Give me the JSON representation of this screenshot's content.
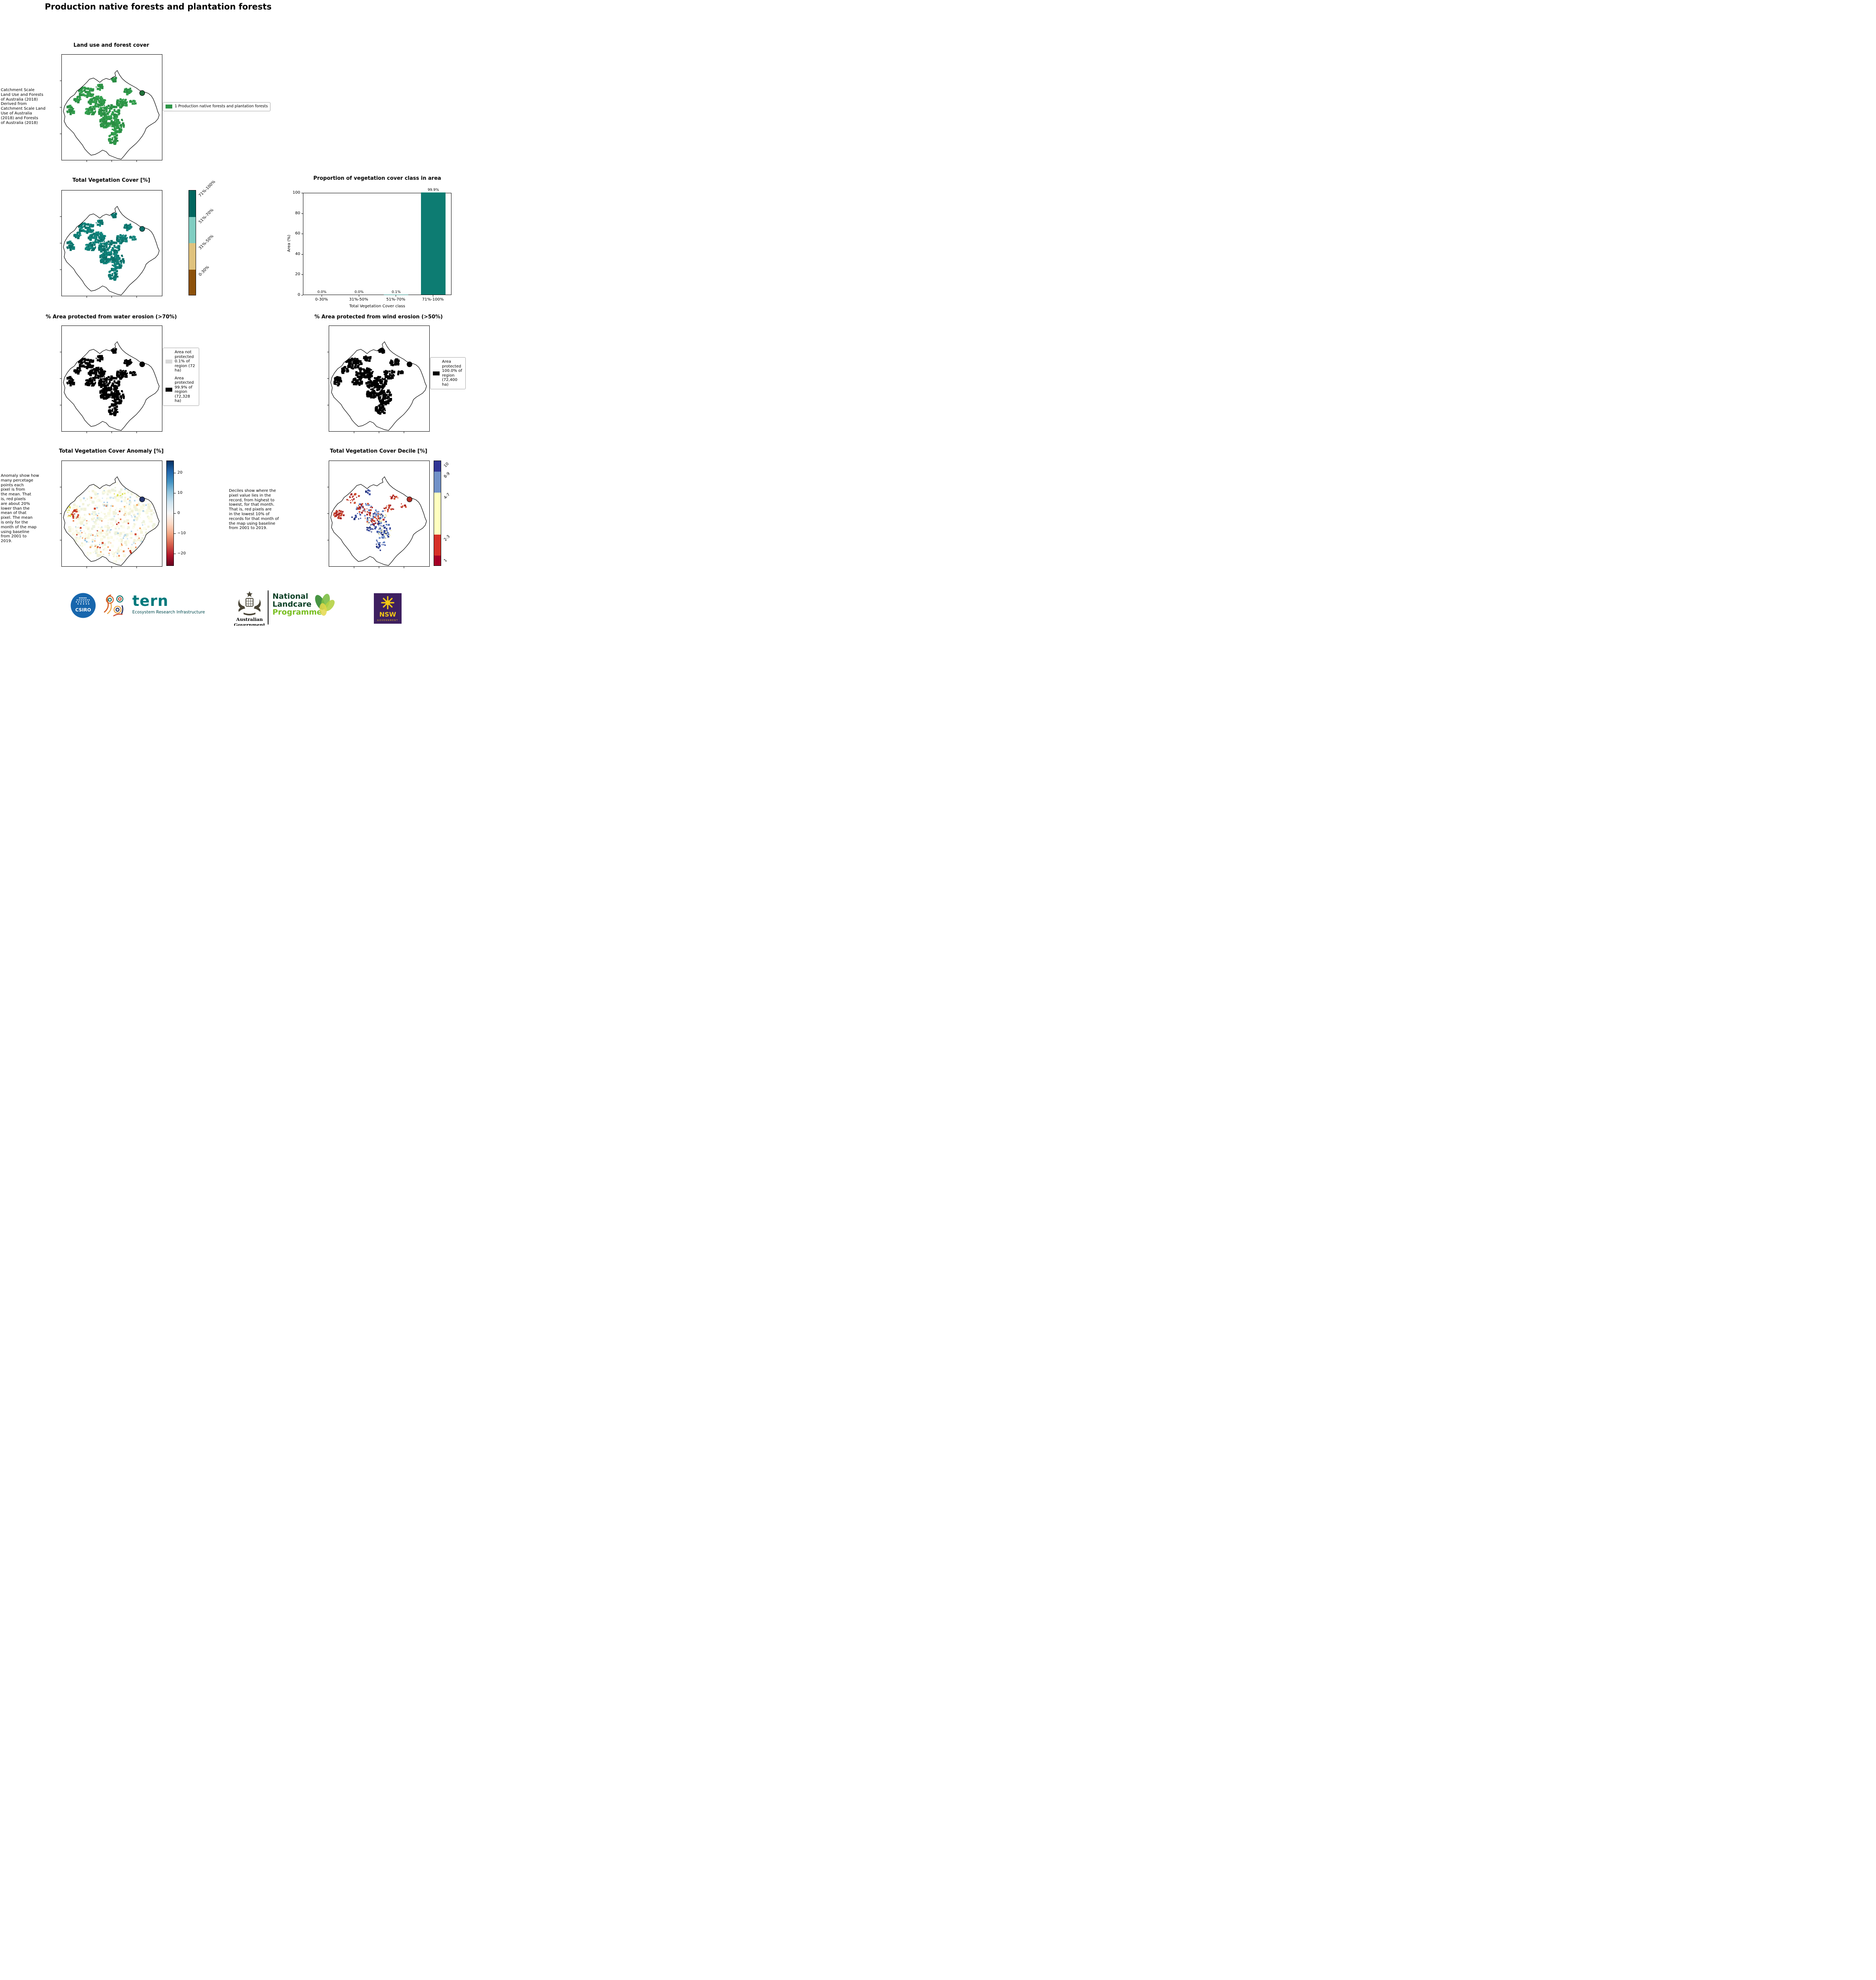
{
  "page": {
    "title": "Production native forests and plantation forests"
  },
  "colors": {
    "forest_green": "#2e9648",
    "veg_teal": "#0e7c74",
    "protected_black": "#000000",
    "not_protected_gray": "#d9d9d9"
  },
  "land_use": {
    "title": "Land use and forest cover",
    "side_text": " Catchment Scale\nLand Use and Forests\nof Australia (2018)\nDerived from\nCatchment Scale Land\nUse of Australia\n(2018) and Forests\nof Australia (2018)",
    "legend_label": "1 Production native forests and plantation forests",
    "legend_color": "#2e9648"
  },
  "veg_cover": {
    "title": "Total Vegetation Cover [%]",
    "colorbar": [
      {
        "label": "71%-100%",
        "color": "#01665e"
      },
      {
        "label": "51%-70%",
        "color": "#80cdc1"
      },
      {
        "label": "31%-50%",
        "color": "#dfc27d"
      },
      {
        "label": "0-30%",
        "color": "#8c510a"
      }
    ]
  },
  "chart_data": {
    "type": "bar",
    "title": "Proportion of vegetation cover class in area",
    "categories": [
      "0-30%",
      "31%-50%",
      "51%-70%",
      "71%-100%"
    ],
    "values": [
      0.0,
      0.0,
      0.1,
      99.9
    ],
    "value_labels": [
      "0.0%",
      "0.0%",
      "0.1%",
      "99.9%"
    ],
    "xlabel": "Total Vegetation Cover class",
    "ylabel": "Area (%)",
    "ylim": [
      0,
      100
    ],
    "yticks": [
      0,
      20,
      40,
      60,
      80,
      100
    ],
    "bar_color": "#0d7c72",
    "grid": false,
    "legend_position": "none"
  },
  "water_erosion": {
    "title": "% Area protected from water erosion (>70%)",
    "legend": [
      {
        "label": "Area not\nprotected\n0.1% of\nregion (72\nha)",
        "color": "#d9d9d9"
      },
      {
        "label": "Area\nprotected\n99.9% of\nregion\n(72,328\nha)",
        "color": "#000000"
      }
    ]
  },
  "wind_erosion": {
    "title": "% Area protected from wind erosion (>50%)",
    "legend": [
      {
        "label": "Area\nprotected\n100.0% of\nregion\n(72,400\nha)",
        "color": "#000000"
      }
    ]
  },
  "anomaly": {
    "title": "Total Vegetation Cover Anomaly [%]",
    "side_text": "Anomaly show how\nmany percetage\npoints each\npixel is from\nthe mean. That\nis, red pixels\nare about 20%\nlower than the\nmean of that\npixel. The mean\nis only for the\nmonth of the map\nusing baseline\nfrom 2001 to\n2019.",
    "colorbar_ticks": [
      "20",
      "10",
      "0",
      "−10",
      "−20"
    ]
  },
  "decile": {
    "title": "Total Vegetation Cover Decile [%]",
    "side_text": "Deciles show where the\npixel value lies in the\nrecord, from highest to\nlowest, for that month.\nThat is, red pixels are\nin the lowest 10% of\nrecords for that month of\nthe map using baseline\nfrom 2001 to 2019.",
    "colorbar": [
      {
        "label": "10",
        "color": "#313695",
        "frac": 0.1
      },
      {
        "label": "8-9",
        "color": "#7191c8",
        "frac": 0.2
      },
      {
        "label": "4-7",
        "color": "#ffffbf",
        "frac": 0.4
      },
      {
        "label": "2-3",
        "color": "#d73027",
        "frac": 0.2
      },
      {
        "label": "1",
        "color": "#a50026",
        "frac": 0.1
      }
    ]
  },
  "logos": {
    "csiro": "CSIRO",
    "tern": "tern",
    "tern_sub": "Ecosystem Research Infrastructure",
    "aus_gov": "Australian Government",
    "landcare_1": "National",
    "landcare_2": "Landcare",
    "landcare_3": "Programme",
    "nsw": "NSW",
    "nsw_sub": "GOVERNMENT"
  }
}
